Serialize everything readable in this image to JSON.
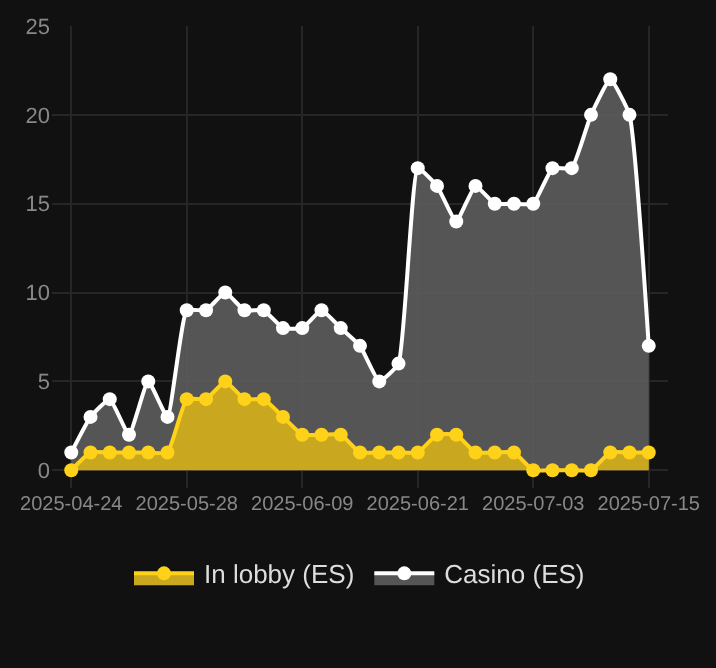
{
  "chart_data": {
    "type": "area",
    "categories": [
      "2025-04-24",
      null,
      null,
      null,
      null,
      null,
      "2025-05-28",
      null,
      null,
      null,
      null,
      null,
      "2025-06-09",
      null,
      null,
      null,
      null,
      null,
      "2025-06-21",
      null,
      null,
      null,
      null,
      null,
      "2025-07-03",
      null,
      null,
      null,
      null,
      null,
      "2025-07-15"
    ],
    "series": [
      {
        "name": "In lobby (ES)",
        "color": "#ffd21a",
        "values": [
          0,
          1,
          1,
          1,
          1,
          1,
          4,
          4,
          5,
          4,
          4,
          3,
          2,
          2,
          2,
          1,
          1,
          1,
          1,
          2,
          2,
          1,
          1,
          1,
          0,
          0,
          0,
          0,
          1,
          1,
          1
        ]
      },
      {
        "name": "Casino (ES)",
        "color": "#ffffff",
        "values": [
          1,
          3,
          4,
          2,
          5,
          3,
          9,
          9,
          10,
          9,
          9,
          8,
          8,
          9,
          8,
          7,
          5,
          6,
          17,
          16,
          14,
          16,
          15,
          15,
          15,
          17,
          17,
          20,
          22,
          20,
          7
        ]
      }
    ],
    "ylim": [
      -1,
      25
    ],
    "yticks": [
      0,
      5,
      10,
      15,
      20,
      25
    ],
    "grid": true,
    "legend": "bottom",
    "marker": "circle",
    "line_style": "solid"
  }
}
